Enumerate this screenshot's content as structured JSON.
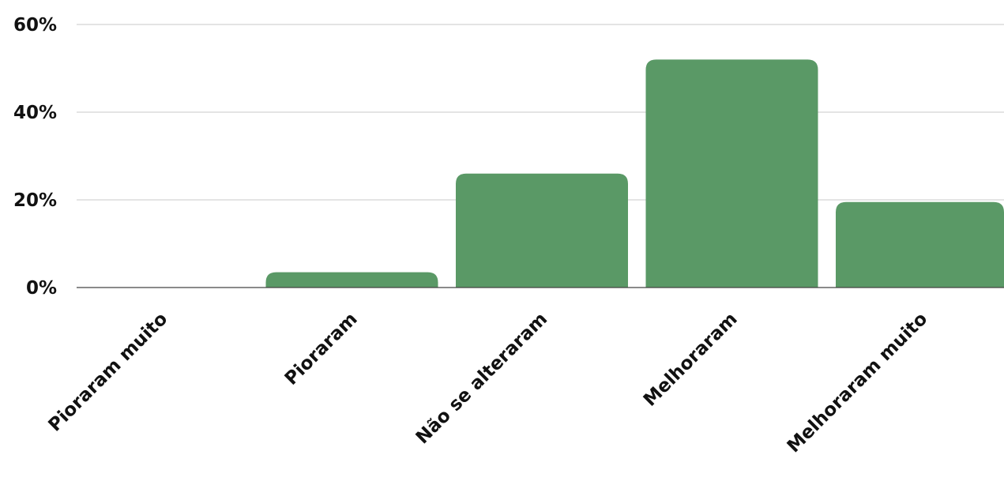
{
  "chart_data": {
    "type": "bar",
    "categories": [
      "Pioraram muito",
      "Pioraram",
      "Não se alteraram",
      "Melhoraram",
      "Melhoraram muito"
    ],
    "values": [
      0,
      3.5,
      26,
      52,
      19.5
    ],
    "value_unit": "%",
    "title": "",
    "xlabel": "",
    "ylabel": "",
    "ylim": [
      0,
      60
    ],
    "yticks": [
      0,
      20,
      40,
      60
    ],
    "ytick_labels": [
      "0%",
      "20%",
      "40%",
      "60%"
    ],
    "grid": true,
    "legend": "none",
    "bar_color": "#5a9966",
    "gridline_color": "#c8c8c8"
  }
}
